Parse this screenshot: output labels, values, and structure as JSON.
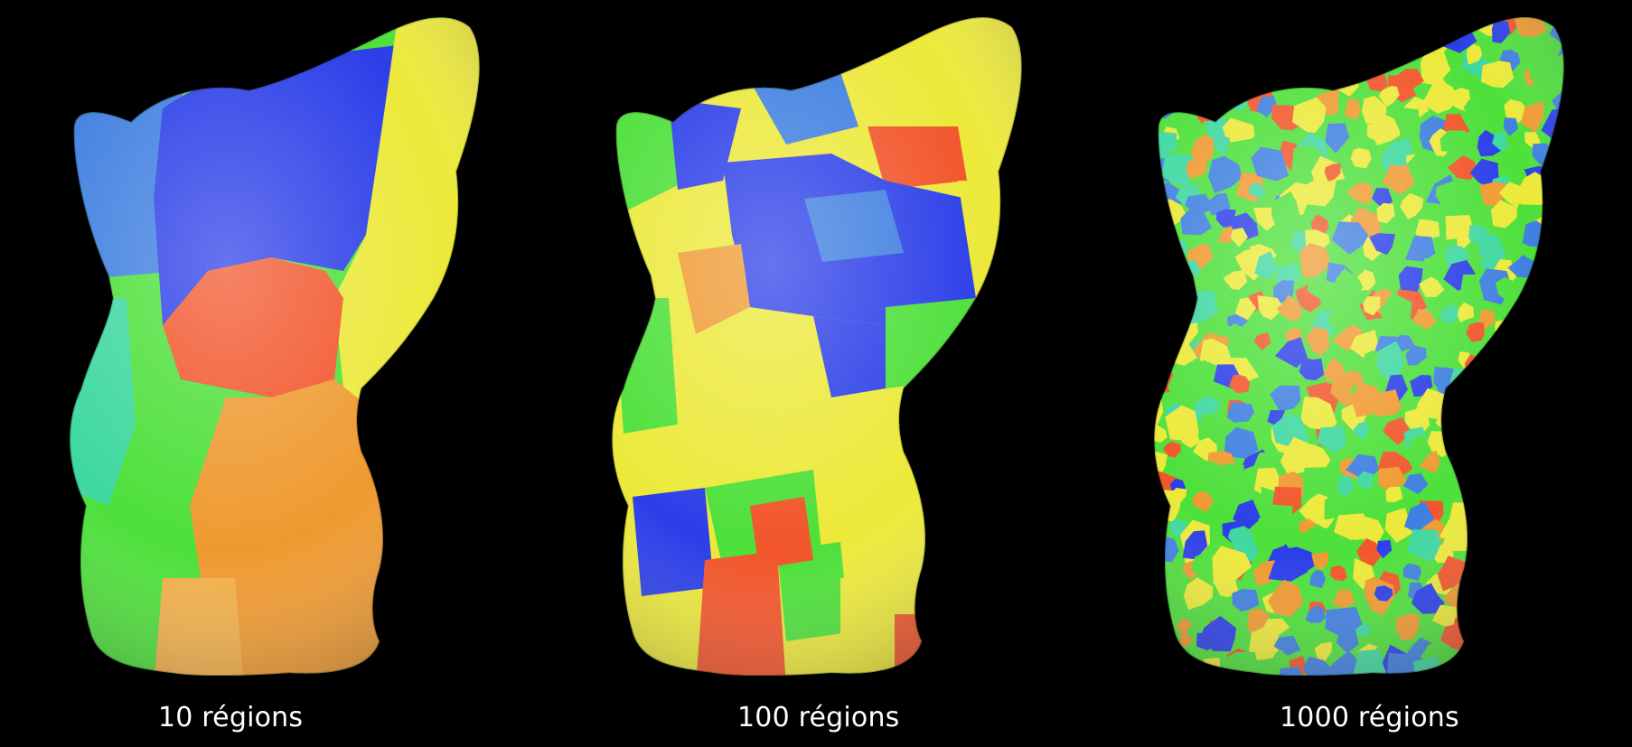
{
  "figure": {
    "background": "#000000",
    "subject": "cat-mesh",
    "panels": [
      {
        "caption": "10 régions"
      },
      {
        "caption": "100 régions"
      },
      {
        "caption": "1000 régions"
      }
    ],
    "palette": {
      "blue": "#2b3ee8",
      "light_blue": "#3f7fe0",
      "yellow": "#ece93a",
      "orange": "#ef9a30",
      "red": "#f2552a",
      "green": "#4de03a",
      "teal": "#3ed8a0"
    }
  }
}
